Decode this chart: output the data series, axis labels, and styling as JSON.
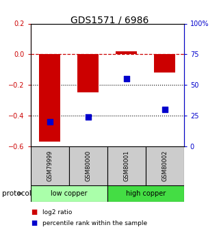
{
  "title": "GDS1571 / 6986",
  "samples": [
    "GSM79999",
    "GSM80000",
    "GSM80001",
    "GSM80002"
  ],
  "log2_ratio": [
    -0.57,
    -0.25,
    0.02,
    -0.12
  ],
  "percentile_rank": [
    20,
    24,
    55,
    30
  ],
  "bar_color": "#cc0000",
  "dot_color": "#0000cc",
  "ylim_left": [
    -0.6,
    0.2
  ],
  "ylim_right": [
    0,
    100
  ],
  "yticks_left": [
    -0.6,
    -0.4,
    -0.2,
    0.0,
    0.2
  ],
  "yticks_right": [
    0,
    25,
    50,
    75,
    100
  ],
  "ytick_labels_right": [
    "0",
    "25",
    "50",
    "75",
    "100%"
  ],
  "protocol_groups": [
    {
      "label": "low copper",
      "samples": [
        0,
        1
      ],
      "color": "#aaffaa"
    },
    {
      "label": "high copper",
      "samples": [
        2,
        3
      ],
      "color": "#44dd44"
    }
  ],
  "legend_items": [
    {
      "label": "log2 ratio",
      "color": "#cc0000"
    },
    {
      "label": "percentile rank within the sample",
      "color": "#0000cc"
    }
  ],
  "dashed_line_color": "#cc0000",
  "dotted_line_color": "#000000",
  "sample_box_color": "#cccccc",
  "bar_width": 0.55,
  "dot_size": 30,
  "title_fontsize": 10,
  "tick_fontsize": 7,
  "sample_fontsize": 6,
  "proto_fontsize": 7,
  "legend_fontsize": 6.5
}
